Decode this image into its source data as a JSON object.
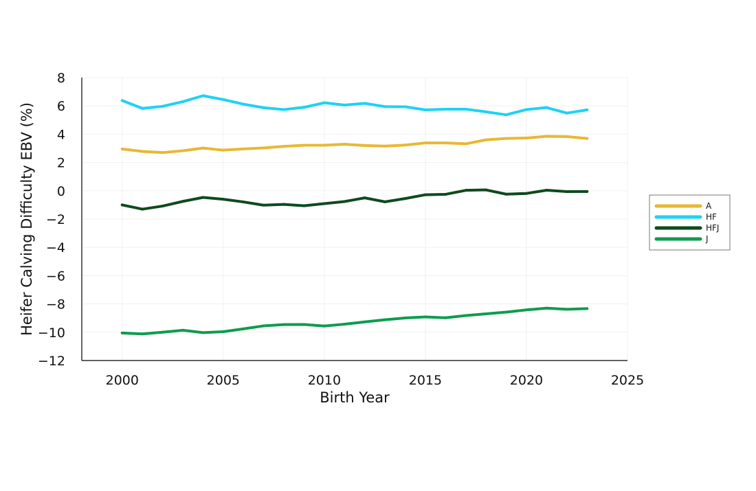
{
  "chart_data": {
    "type": "line",
    "title": "",
    "xlabel": "Birth Year",
    "ylabel": "Heifer Calving Difficulty EBV (%)",
    "xlim": [
      1998,
      2025
    ],
    "ylim": [
      -12,
      8
    ],
    "xticks": [
      2000,
      2005,
      2010,
      2015,
      2020,
      2025
    ],
    "yticks": [
      -12,
      -10,
      -8,
      -6,
      -4,
      -2,
      0,
      2,
      4,
      6,
      8
    ],
    "ytick_labels": [
      "−12",
      "−10",
      "−8",
      "−6",
      "−4",
      "−2",
      "0",
      "2",
      "4",
      "6",
      "8"
    ],
    "grid": true,
    "legend_position": "right",
    "x": [
      2000,
      2001,
      2002,
      2003,
      2004,
      2005,
      2006,
      2007,
      2008,
      2009,
      2010,
      2011,
      2012,
      2013,
      2014,
      2015,
      2016,
      2017,
      2018,
      2019,
      2020,
      2021,
      2022,
      2023
    ],
    "series": [
      {
        "name": "A",
        "color": "#E8B833",
        "values": [
          2.95,
          2.78,
          2.7,
          2.83,
          3.02,
          2.87,
          2.96,
          3.03,
          3.14,
          3.22,
          3.22,
          3.29,
          3.2,
          3.16,
          3.23,
          3.38,
          3.38,
          3.32,
          3.6,
          3.7,
          3.73,
          3.85,
          3.83,
          3.7
        ]
      },
      {
        "name": "HF",
        "color": "#1ED2F5",
        "values": [
          6.38,
          5.82,
          5.97,
          6.3,
          6.72,
          6.45,
          6.12,
          5.87,
          5.74,
          5.9,
          6.22,
          6.06,
          6.18,
          5.95,
          5.94,
          5.72,
          5.77,
          5.77,
          5.58,
          5.37,
          5.74,
          5.88,
          5.49,
          5.72
        ]
      },
      {
        "name": "HFJ",
        "color": "#0E4A1E",
        "values": [
          -1.0,
          -1.3,
          -1.08,
          -0.75,
          -0.47,
          -0.6,
          -0.79,
          -1.02,
          -0.96,
          -1.06,
          -0.91,
          -0.76,
          -0.5,
          -0.78,
          -0.55,
          -0.28,
          -0.25,
          0.03,
          0.06,
          -0.24,
          -0.19,
          0.04,
          -0.06,
          -0.05
        ]
      },
      {
        "name": "J",
        "color": "#0E9C4E",
        "values": [
          -10.05,
          -10.12,
          -10.0,
          -9.86,
          -10.03,
          -9.96,
          -9.76,
          -9.55,
          -9.46,
          -9.45,
          -9.56,
          -9.43,
          -9.27,
          -9.12,
          -8.99,
          -8.92,
          -8.98,
          -8.82,
          -8.7,
          -8.58,
          -8.42,
          -8.3,
          -8.38,
          -8.33
        ]
      }
    ]
  }
}
